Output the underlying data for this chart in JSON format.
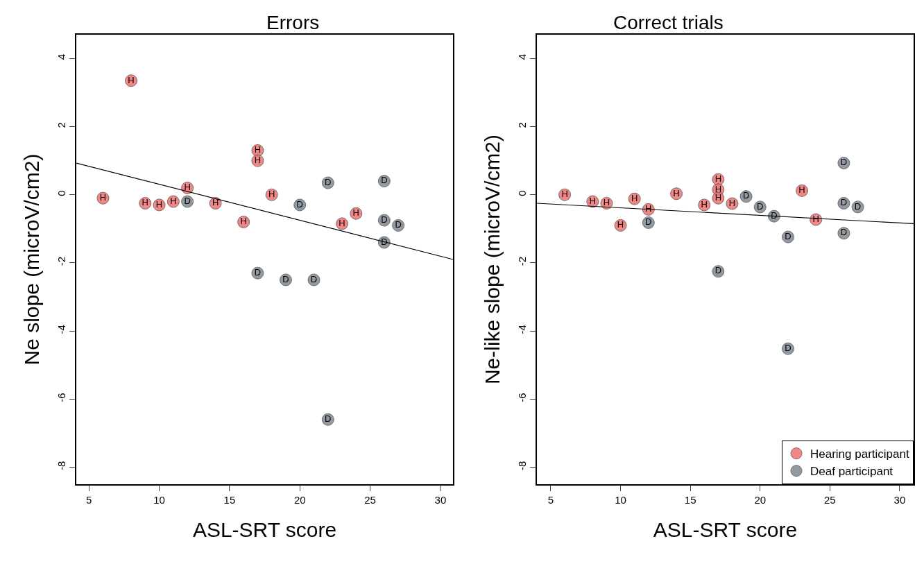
{
  "chart_data": [
    {
      "type": "scatter",
      "title": "Errors",
      "xlabel": "ASL-SRT score",
      "ylabel": "Ne slope (microV/cm2)",
      "xlim": [
        4.1,
        30.9
      ],
      "ylim": [
        -8.5,
        4.7
      ],
      "xticks": [
        5,
        10,
        15,
        20,
        25,
        30
      ],
      "yticks": [
        -8,
        -6,
        -4,
        -2,
        0,
        2,
        4
      ],
      "legend": false,
      "marker": "circle",
      "series": [
        {
          "color": "#f07070",
          "x": [
            6,
            8,
            9,
            10,
            11,
            12,
            14,
            16,
            17,
            17,
            18,
            23,
            24
          ],
          "values": [
            -0.1,
            3.35,
            -0.25,
            -0.3,
            -0.2,
            0.2,
            -0.25,
            -0.8,
            1.3,
            1.0,
            0,
            -0.85,
            -0.55
          ],
          "value_labels": [
            "H",
            "H",
            "H",
            "H",
            "H",
            "H",
            "H",
            "H",
            "H",
            "H",
            "H",
            "H",
            "H"
          ]
        },
        {
          "color": "#808890",
          "x": [
            12,
            17,
            19,
            20,
            21,
            22,
            22,
            26,
            26,
            26,
            27
          ],
          "values": [
            -0.2,
            -2.3,
            -2.5,
            -0.3,
            -2.5,
            0.35,
            -6.6,
            0.4,
            -0.75,
            -1.4,
            -0.9
          ],
          "value_labels": [
            "D",
            "D",
            "D",
            "D",
            "D",
            "D",
            "D",
            "D",
            "D",
            "D",
            "D"
          ]
        },
        {
          "type": "line",
          "color": "#000000",
          "x": [
            4.1,
            30.9
          ],
          "values": [
            0.93,
            -1.9
          ],
          "marker": "none"
        }
      ]
    },
    {
      "type": "scatter",
      "title": "Correct trials",
      "xlabel": "ASL-SRT score",
      "ylabel": "Ne-like slope (microV/cm2)",
      "xlim": [
        4.0,
        31.0
      ],
      "ylim": [
        -8.5,
        4.7
      ],
      "xticks": [
        5,
        10,
        15,
        20,
        25,
        30
      ],
      "yticks": [
        -8,
        -6,
        -4,
        -2,
        0,
        2,
        4
      ],
      "legend": "bottom right",
      "marker": "circle",
      "series": [
        {
          "name": "Hearing participant",
          "color": "#f07070",
          "x": [
            6,
            8,
            9,
            10,
            11,
            12,
            14,
            16,
            17,
            17,
            17,
            18,
            23,
            24
          ],
          "values": [
            0.0,
            -0.2,
            -0.25,
            -0.9,
            -0.12,
            -0.43,
            0.03,
            -0.3,
            0.45,
            0.15,
            -0.1,
            -0.26,
            0.12,
            -0.73
          ],
          "value_labels": [
            "H",
            "H",
            "H",
            "H",
            "H",
            "H",
            "H",
            "H",
            "H",
            "H",
            "H",
            "H",
            "H",
            "H"
          ]
        },
        {
          "name": "Deaf participant",
          "color": "#808890",
          "x": [
            12,
            17,
            19,
            20,
            21,
            22,
            22,
            26,
            26,
            26,
            27
          ],
          "values": [
            -0.82,
            -2.25,
            -0.05,
            -0.36,
            -0.63,
            -1.24,
            -4.52,
            0.93,
            -0.25,
            -1.13,
            -0.36
          ],
          "value_labels": [
            "D",
            "D",
            "D",
            "D",
            "D",
            "D",
            "D",
            "D",
            "D",
            "D",
            "D"
          ]
        },
        {
          "type": "line",
          "color": "#000000",
          "x": [
            4.0,
            31.0
          ],
          "values": [
            -0.25,
            -0.85
          ],
          "marker": "none"
        }
      ]
    }
  ]
}
